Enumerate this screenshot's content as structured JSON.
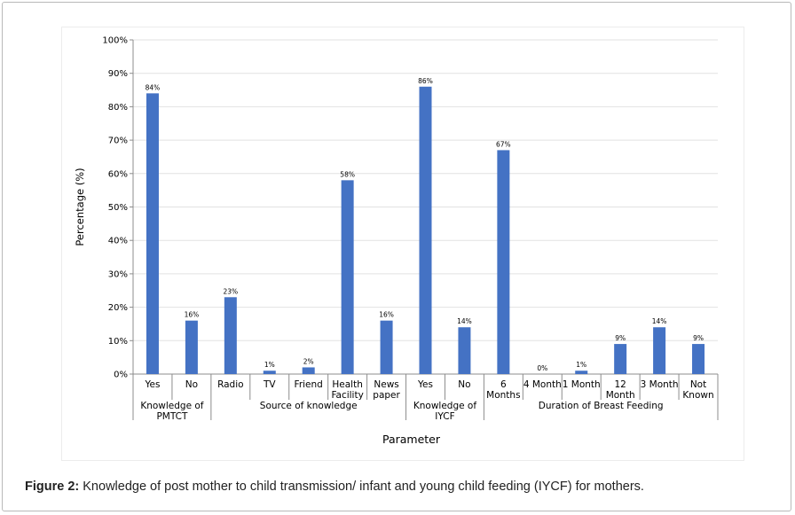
{
  "caption": {
    "label": "Figure 2:",
    "text": "Knowledge of post mother to child transmission/ infant and young child feeding (IYCF) for mothers."
  },
  "chart_data": {
    "type": "bar",
    "ylabel": "Percentage (%)",
    "xlabel": "Parameter",
    "ylim": [
      0,
      100
    ],
    "yticks": [
      "0%",
      "10%",
      "20%",
      "30%",
      "40%",
      "50%",
      "60%",
      "70%",
      "80%",
      "90%",
      "100%"
    ],
    "bar_color": "#4472c4",
    "categories": [
      [
        "Yes"
      ],
      [
        "No"
      ],
      [
        "Radio"
      ],
      [
        "TV"
      ],
      [
        "Friend"
      ],
      [
        "Health",
        "Facility"
      ],
      [
        "News",
        "paper"
      ],
      [
        "Yes"
      ],
      [
        "No"
      ],
      [
        "6",
        "Months"
      ],
      [
        "4 Month"
      ],
      [
        "1 Month"
      ],
      [
        "12",
        "Month"
      ],
      [
        "3 Month"
      ],
      [
        "Not",
        "Known"
      ]
    ],
    "values": [
      84,
      16,
      23,
      1,
      2,
      58,
      16,
      86,
      14,
      67,
      0,
      1,
      9,
      14,
      9
    ],
    "data_labels": [
      "84%",
      "16%",
      "23%",
      "1%",
      "2%",
      "58%",
      "16%",
      "86%",
      "14%",
      "67%",
      "0%",
      "1%",
      "9%",
      "14%",
      "9%"
    ],
    "groups": [
      {
        "label": [
          "Knowledge of",
          "PMTCT"
        ],
        "start": 0,
        "count": 2
      },
      {
        "label": [
          "Source of knowledge"
        ],
        "start": 2,
        "count": 5
      },
      {
        "label": [
          "Knowledge of",
          "IYCF"
        ],
        "start": 7,
        "count": 2
      },
      {
        "label": [
          "Duration of Breast Feeding"
        ],
        "start": 9,
        "count": 6
      }
    ]
  }
}
